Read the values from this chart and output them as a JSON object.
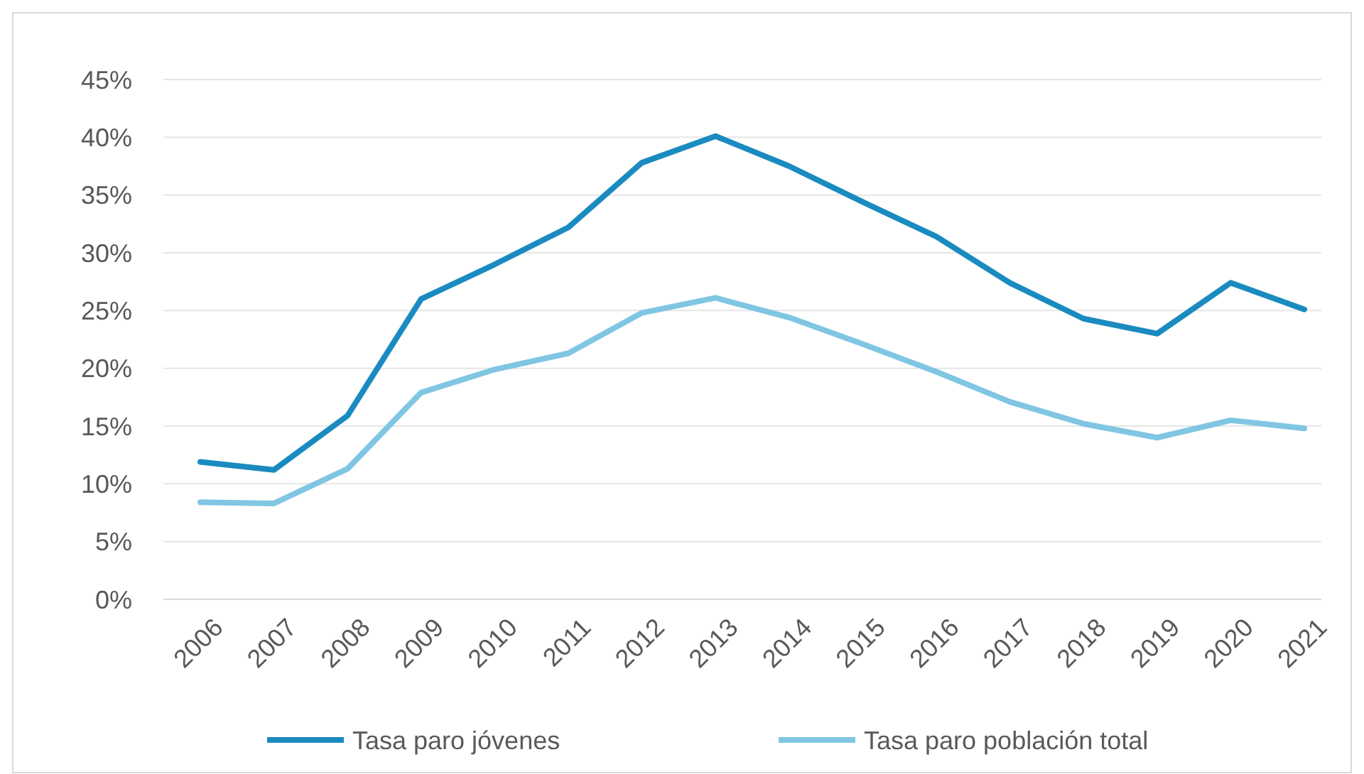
{
  "chart_data": {
    "type": "line",
    "categories": [
      "2006",
      "2007",
      "2008",
      "2009",
      "2010",
      "2011",
      "2012",
      "2013",
      "2014",
      "2015",
      "2016",
      "2017",
      "2018",
      "2019",
      "2020",
      "2021"
    ],
    "series": [
      {
        "name": "Tasa paro jóvenes",
        "color": "#1a8bc0",
        "values": [
          11.9,
          11.2,
          15.9,
          26.0,
          29.0,
          32.2,
          37.8,
          40.1,
          37.5,
          34.4,
          31.4,
          27.4,
          24.3,
          23.0,
          27.4,
          25.1
        ]
      },
      {
        "name": "Tasa paro población total",
        "color": "#80c6e3",
        "values": [
          8.4,
          8.3,
          11.3,
          17.9,
          19.9,
          21.3,
          24.8,
          26.1,
          24.4,
          22.1,
          19.7,
          17.1,
          15.2,
          14.0,
          15.5,
          14.8
        ]
      }
    ],
    "ylim": [
      0,
      45
    ],
    "yticks": [
      {
        "value": 0,
        "label": "0%"
      },
      {
        "value": 5,
        "label": "5%"
      },
      {
        "value": 10,
        "label": "10%"
      },
      {
        "value": 15,
        "label": "15%"
      },
      {
        "value": 20,
        "label": "20%"
      },
      {
        "value": 25,
        "label": "25%"
      },
      {
        "value": 30,
        "label": "30%"
      },
      {
        "value": 35,
        "label": "35%"
      },
      {
        "value": 40,
        "label": "40%"
      },
      {
        "value": 45,
        "label": "45%"
      }
    ],
    "grid": "y",
    "legend": "bottom",
    "marker": "none",
    "line_style": "solid"
  }
}
